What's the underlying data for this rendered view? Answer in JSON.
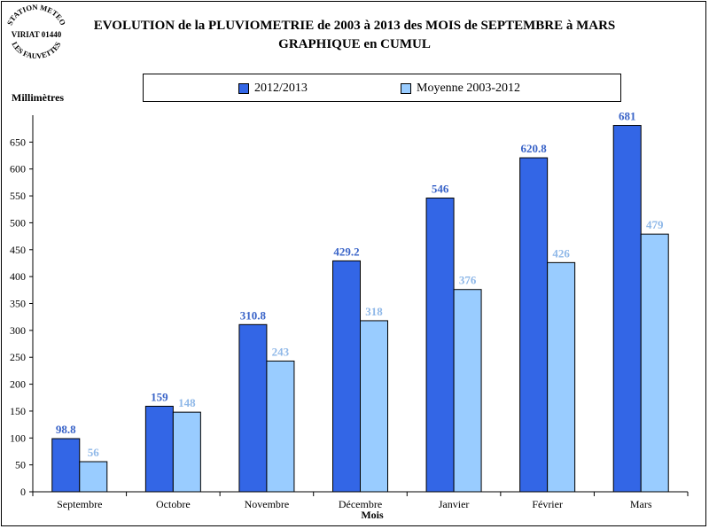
{
  "logo": {
    "top_text": "STATION METEO",
    "middle_text": "VIRIAT 01440",
    "bottom_text": "LES FAUVETTES"
  },
  "chart_data": {
    "type": "bar",
    "title": "EVOLUTION de la PLUVIOMETRIE de 2003 à 2013 des MOIS de SEPTEMBRE à MARS",
    "subtitle": "GRAPHIQUE en CUMUL",
    "ylabel": "Millimètres",
    "xlabel": "Mois",
    "ylim": [
      0,
      700
    ],
    "yticks": [
      0,
      50,
      100,
      150,
      200,
      250,
      300,
      350,
      400,
      450,
      500,
      550,
      600,
      650
    ],
    "grid": false,
    "legend_position": "top",
    "categories": [
      "Septembre",
      "Octobre",
      "Novembre",
      "Décembre",
      "Janvier",
      "Février",
      "Mars"
    ],
    "series": [
      {
        "name": "2012/2013",
        "color": "#3366e6",
        "label_color": "#3a64c8",
        "values": [
          98.8,
          159,
          310.8,
          429.2,
          546,
          620.8,
          681
        ],
        "labels": [
          "98.8",
          "159",
          "310.8",
          "429.2",
          "546",
          "620.8",
          "681"
        ]
      },
      {
        "name": "Moyenne 2003-2012",
        "color": "#99ccff",
        "label_color": "#8fb8e8",
        "values": [
          56,
          148,
          243,
          318,
          376,
          426,
          479
        ],
        "labels": [
          "56",
          "148",
          "243",
          "318",
          "376",
          "426",
          "479"
        ]
      }
    ]
  }
}
